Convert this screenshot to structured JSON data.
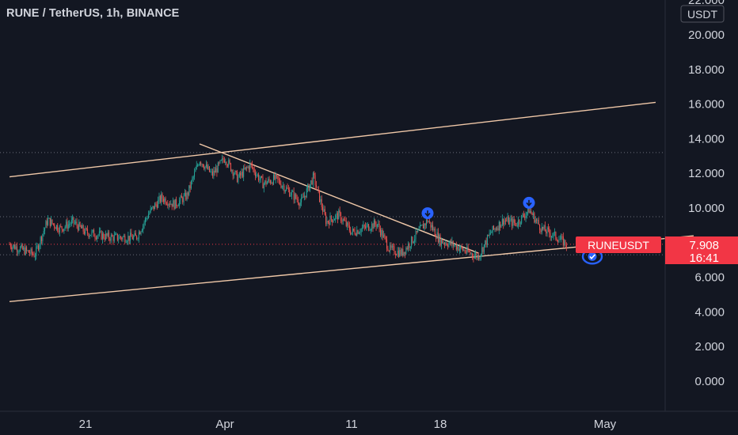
{
  "header": {
    "title": "RUNE / TetherUS, 1h, BINANCE"
  },
  "price_scale": {
    "currency": "USDT",
    "ticks": [
      "22.000",
      "20.000",
      "18.000",
      "16.000",
      "14.000",
      "12.000",
      "10.000",
      "6.000",
      "4.000",
      "2.000",
      "0.000"
    ]
  },
  "time_scale": {
    "ticks": [
      "21",
      "Apr",
      "11",
      "18",
      "May"
    ]
  },
  "last_price": {
    "symbol_label": "RUNEUSDT",
    "price": "7.908",
    "countdown": "16:41"
  },
  "colors": {
    "background": "#131722",
    "up": "#26a69a",
    "down": "#ef5350",
    "trendline": "#f0c8a8",
    "marker": "#2962ff",
    "price_tag": "#f23645",
    "text": "#d1d4dc"
  },
  "chart_data": {
    "type": "candlestick",
    "title": "RUNE / TetherUS, 1h, BINANCE",
    "ylabel": "USDT",
    "ylim": [
      0,
      22
    ],
    "x_ticks": [
      "21",
      "Apr",
      "11",
      "18",
      "May"
    ],
    "series": [
      {
        "name": "RUNEUSDT",
        "path": [
          {
            "date": "2022-03-15",
            "price": 7.9
          },
          {
            "date": "2022-03-17",
            "price": 7.3
          },
          {
            "date": "2022-03-18",
            "price": 9.3
          },
          {
            "date": "2022-03-19",
            "price": 8.8
          },
          {
            "date": "2022-03-20",
            "price": 9.2
          },
          {
            "date": "2022-03-21",
            "price": 8.6
          },
          {
            "date": "2022-03-23",
            "price": 8.3
          },
          {
            "date": "2022-03-25",
            "price": 8.3
          },
          {
            "date": "2022-03-26",
            "price": 9.7
          },
          {
            "date": "2022-03-27",
            "price": 10.6
          },
          {
            "date": "2022-03-28",
            "price": 10.2
          },
          {
            "date": "2022-03-29",
            "price": 10.7
          },
          {
            "date": "2022-03-30",
            "price": 12.8
          },
          {
            "date": "2022-03-31",
            "price": 11.9
          },
          {
            "date": "2022-04-01",
            "price": 12.9
          },
          {
            "date": "2022-04-02",
            "price": 11.7
          },
          {
            "date": "2022-04-03",
            "price": 12.5
          },
          {
            "date": "2022-04-04",
            "price": 11.4
          },
          {
            "date": "2022-04-05",
            "price": 11.7
          },
          {
            "date": "2022-04-06",
            "price": 11.0
          },
          {
            "date": "2022-04-07",
            "price": 10.3
          },
          {
            "date": "2022-04-08",
            "price": 11.8
          },
          {
            "date": "2022-04-09",
            "price": 9.2
          },
          {
            "date": "2022-04-10",
            "price": 9.6
          },
          {
            "date": "2022-04-11",
            "price": 8.6
          },
          {
            "date": "2022-04-13",
            "price": 9.1
          },
          {
            "date": "2022-04-14",
            "price": 7.6
          },
          {
            "date": "2022-04-15",
            "price": 7.4
          },
          {
            "date": "2022-04-17",
            "price": 9.3
          },
          {
            "date": "2022-04-18",
            "price": 8.1
          },
          {
            "date": "2022-04-19",
            "price": 7.9
          },
          {
            "date": "2022-04-20",
            "price": 7.5
          },
          {
            "date": "2022-04-21",
            "price": 7.2
          },
          {
            "date": "2022-04-22",
            "price": 8.6
          },
          {
            "date": "2022-04-23",
            "price": 9.3
          },
          {
            "date": "2022-04-24",
            "price": 9.1
          },
          {
            "date": "2022-04-25",
            "price": 9.9
          },
          {
            "date": "2022-04-26",
            "price": 8.8
          },
          {
            "date": "2022-04-27",
            "price": 8.4
          },
          {
            "date": "2022-04-28",
            "price": 7.908
          }
        ]
      }
    ],
    "trendlines": [
      {
        "from": {
          "date": "2022-03-15",
          "price": 11.8
        },
        "to": {
          "date": "2022-05-05",
          "price": 16.1
        }
      },
      {
        "from": {
          "date": "2022-03-15",
          "price": 4.6
        },
        "to": {
          "date": "2022-05-08",
          "price": 8.4
        }
      },
      {
        "from": {
          "date": "2022-03-30",
          "price": 13.7
        },
        "to": {
          "date": "2022-04-21",
          "price": 7.4
        }
      }
    ],
    "horizontal_levels": [
      13.2,
      9.5,
      7.908,
      7.3
    ],
    "markers": [
      {
        "date": "2022-04-17",
        "price": 9.7,
        "shape": "down-arrow-circle"
      },
      {
        "date": "2022-04-25",
        "price": 10.3,
        "shape": "down-arrow-circle"
      },
      {
        "date": "2022-04-30",
        "price": 7.2,
        "shape": "check-circle"
      }
    ],
    "legend": "none",
    "grid": false
  }
}
